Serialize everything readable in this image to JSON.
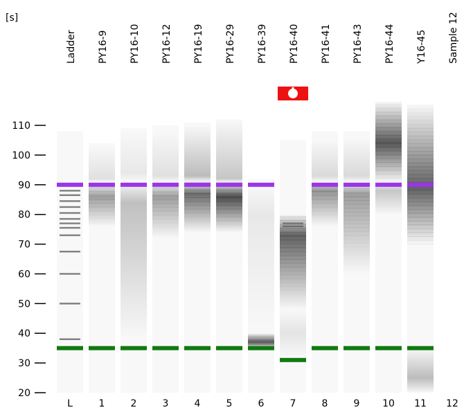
{
  "chart_data": {
    "type": "gel",
    "unit_label": "[s]",
    "y_range": [
      20,
      118
    ],
    "y_ticks": [
      110,
      100,
      90,
      80,
      70,
      60,
      50,
      40,
      30,
      20
    ],
    "upper_marker_color": "#9a35e8",
    "lower_marker_color": "#107a10",
    "error_flag_color": "#ee1111",
    "lanes": [
      {
        "sample": "Ladder",
        "lane": "L",
        "ladder_bands": [
          88,
          86.5,
          84.5,
          82.5,
          80.5,
          78.5,
          77,
          75.5,
          73,
          67.5,
          60,
          50,
          38
        ],
        "upper_marker": 90,
        "lower_marker": 35,
        "top": 108,
        "bottom": 20,
        "smears": []
      },
      {
        "sample": "PY16-9",
        "lane": "1",
        "upper_marker": 90,
        "lower_marker": 35,
        "top": 104,
        "bottom": 20,
        "smears": [
          {
            "from": 76,
            "to": 91,
            "peak": 86,
            "intensity": 0.45
          },
          {
            "from": 91,
            "to": 103,
            "peak": 92,
            "intensity": 0.12
          }
        ]
      },
      {
        "sample": "PY16-10",
        "lane": "2",
        "upper_marker": 90,
        "lower_marker": 35,
        "top": 109,
        "bottom": 20,
        "smears": [
          {
            "from": 38,
            "to": 91,
            "peak": 84,
            "intensity": 0.28
          },
          {
            "from": 91,
            "to": 108,
            "peak": 94,
            "intensity": 0.08
          }
        ]
      },
      {
        "sample": "PY16-12",
        "lane": "3",
        "upper_marker": 90,
        "lower_marker": 35,
        "top": 110,
        "bottom": 20,
        "smears": [
          {
            "from": 72,
            "to": 91,
            "peak": 86,
            "intensity": 0.45
          },
          {
            "from": 91,
            "to": 108,
            "peak": 93,
            "intensity": 0.12
          }
        ]
      },
      {
        "sample": "PY16-19",
        "lane": "4",
        "upper_marker": 90,
        "lower_marker": 35,
        "top": 111,
        "bottom": 20,
        "smears": [
          {
            "from": 74,
            "to": 91,
            "peak": 87,
            "intensity": 0.7
          },
          {
            "from": 91,
            "to": 110,
            "peak": 93,
            "intensity": 0.3
          }
        ]
      },
      {
        "sample": "PY16-29",
        "lane": "5",
        "upper_marker": 90,
        "lower_marker": 35,
        "top": 112,
        "bottom": 20,
        "smears": [
          {
            "from": 74,
            "to": 91,
            "peak": 86,
            "intensity": 0.85
          },
          {
            "from": 91,
            "to": 112,
            "peak": 92,
            "intensity": 0.25
          }
        ]
      },
      {
        "sample": "PY16-39",
        "lane": "6",
        "upper_marker": 90,
        "lower_marker": 35,
        "top": 92,
        "bottom": 20,
        "smears": [
          {
            "from": 35,
            "to": 40,
            "peak": 37,
            "intensity": 0.8
          },
          {
            "from": 40,
            "to": 90,
            "peak": 80,
            "intensity": 0.08
          }
        ]
      },
      {
        "sample": "PY16-40",
        "lane": "7",
        "upper_marker": null,
        "lower_marker": 31,
        "top": 105,
        "bottom": 20,
        "error_flag": true,
        "ladder_bands": [
          77,
          76
        ],
        "smears": [
          {
            "from": 48,
            "to": 80,
            "peak": 73,
            "intensity": 0.75
          },
          {
            "from": 32,
            "to": 48,
            "peak": 40,
            "intensity": 0.1
          }
        ]
      },
      {
        "sample": "PY16-41",
        "lane": "8",
        "upper_marker": 90,
        "lower_marker": 35,
        "top": 108,
        "bottom": 20,
        "smears": [
          {
            "from": 76,
            "to": 91,
            "peak": 88,
            "intensity": 0.5
          },
          {
            "from": 91,
            "to": 105,
            "peak": 93,
            "intensity": 0.15
          }
        ]
      },
      {
        "sample": "PY16-43",
        "lane": "9",
        "upper_marker": 90,
        "lower_marker": 35,
        "top": 108,
        "bottom": 20,
        "smears": [
          {
            "from": 60,
            "to": 91,
            "peak": 87,
            "intensity": 0.45
          },
          {
            "from": 91,
            "to": 106,
            "peak": 93,
            "intensity": 0.15
          }
        ]
      },
      {
        "sample": "PY16-44",
        "lane": "10",
        "upper_marker": 90,
        "lower_marker": 35,
        "top": 118,
        "bottom": 20,
        "smears": [
          {
            "from": 91,
            "to": 118,
            "peak": 104,
            "intensity": 0.8
          },
          {
            "from": 80,
            "to": 91,
            "peak": 88,
            "intensity": 0.25
          }
        ]
      },
      {
        "sample": "Y16-45",
        "lane": "11",
        "upper_marker": 90,
        "lower_marker": 35,
        "top": 117,
        "bottom": 20,
        "smears": [
          {
            "from": 70,
            "to": 117,
            "peak": 89,
            "intensity": 0.75
          },
          {
            "from": 20,
            "to": 35,
            "peak": 25,
            "intensity": 0.3
          }
        ]
      },
      {
        "sample": "Sample 12",
        "lane": "12",
        "empty": true
      }
    ]
  }
}
